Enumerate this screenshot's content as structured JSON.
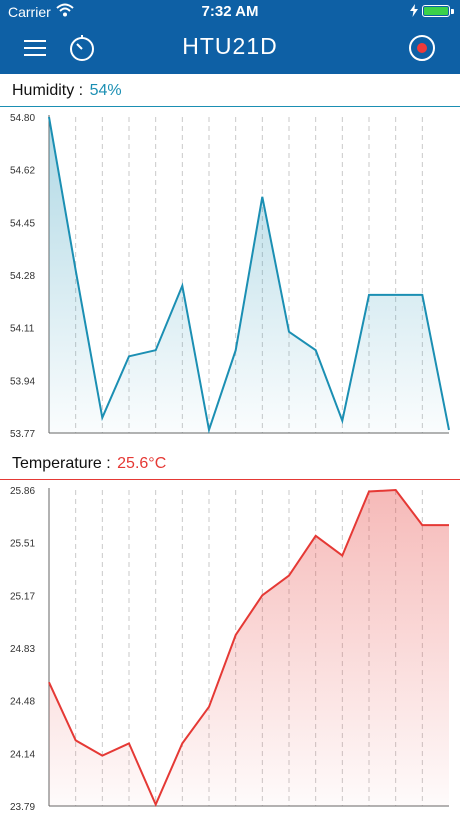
{
  "status_bar": {
    "carrier": "Carrier",
    "time": "7:32 AM",
    "battery_level": 1.0
  },
  "nav": {
    "title": "HTU21D",
    "menu_icon": "hamburger-menu-icon",
    "timer_icon": "timer-icon",
    "record_icon": "record-icon"
  },
  "colors": {
    "nav_background": "#0e60a5",
    "humidity": "#1b8fb3",
    "temperature": "#e53935",
    "record_dot": "#f03a3a"
  },
  "humidity": {
    "label": "Humidity : ",
    "value": "54%",
    "chart_data": {
      "type": "area",
      "y_ticks": [
        "54.80",
        "54.62",
        "54.45",
        "54.28",
        "54.11",
        "53.94",
        "53.77"
      ],
      "ylim": [
        53.77,
        54.8
      ],
      "x": [
        0,
        1,
        2,
        3,
        4,
        5,
        6,
        7,
        8,
        9,
        10,
        11,
        12,
        13,
        14,
        15
      ],
      "values": [
        54.8,
        54.3,
        53.82,
        54.02,
        54.04,
        54.25,
        53.78,
        54.04,
        54.54,
        54.1,
        54.04,
        53.81,
        54.22,
        54.22,
        54.22,
        53.78
      ],
      "grid": "vertical dashed"
    }
  },
  "temperature": {
    "label": "Temperature : ",
    "value": "25.6°C",
    "chart_data": {
      "type": "area",
      "y_ticks": [
        "25.86",
        "25.51",
        "25.17",
        "24.83",
        "24.48",
        "24.14",
        "23.79"
      ],
      "ylim": [
        23.79,
        25.86
      ],
      "x": [
        0,
        1,
        2,
        3,
        4,
        5,
        6,
        7,
        8,
        9,
        10,
        11,
        12,
        13,
        14,
        15
      ],
      "values": [
        24.6,
        24.22,
        24.12,
        24.2,
        23.8,
        24.2,
        24.44,
        24.91,
        25.17,
        25.3,
        25.56,
        25.43,
        25.85,
        25.86,
        25.63,
        25.63
      ],
      "grid": "vertical dashed"
    }
  }
}
